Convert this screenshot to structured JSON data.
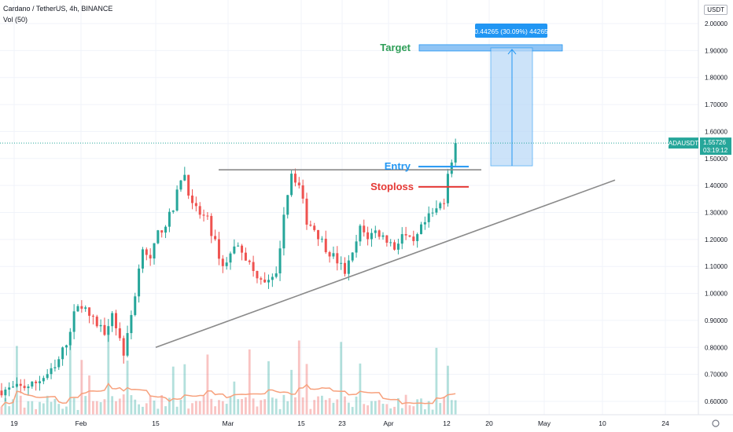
{
  "header": {
    "title": "Cardano / TetherUS, 4h, BINANCE",
    "volume_label": "Vol (50)"
  },
  "currency_button": "USDT",
  "price_tag": {
    "symbol": "ADAUSDT",
    "price": "1.55726",
    "countdown": "03:19:12",
    "color": "#26a69a"
  },
  "colors": {
    "up": "#26a69a",
    "down": "#ef5350",
    "volume_ma": "#f7a17d",
    "trendline": "#8a8a8a",
    "projection": "#2196f3",
    "entry": "#2196f3",
    "stoploss": "#e53935",
    "target": "#2e9e57"
  },
  "chart_data": {
    "type": "candlestick",
    "y_axis": {
      "ticks": [
        0.6,
        0.7,
        0.8,
        0.9,
        1.0,
        1.1,
        1.2,
        1.3,
        1.4,
        1.5,
        1.6,
        1.7,
        1.8,
        1.9,
        2.0
      ],
      "tick_labels": [
        "0.60000",
        "0.70000",
        "0.80000",
        "0.90000",
        "1.00000",
        "1.10000",
        "1.20000",
        "1.30000",
        "1.40000",
        "1.50000",
        "1.60000",
        "1.70000",
        "1.80000",
        "1.90000",
        "2.00000"
      ],
      "range": [
        0.57,
        2.04
      ]
    },
    "x_axis": {
      "tick_labels": [
        "19",
        "Feb",
        "15",
        "Mar",
        "15",
        "23",
        "Apr",
        "12",
        "20",
        "May",
        "10",
        "24"
      ]
    },
    "price_path": [
      [
        0,
        0.64
      ],
      [
        8,
        0.66
      ],
      [
        14,
        0.72
      ],
      [
        17,
        0.82
      ],
      [
        20,
        0.97
      ],
      [
        24,
        0.9
      ],
      [
        27,
        0.86
      ],
      [
        29,
        0.93
      ],
      [
        32,
        0.78
      ],
      [
        33,
        0.84
      ],
      [
        35,
        1.0
      ],
      [
        37,
        1.18
      ],
      [
        39,
        1.12
      ],
      [
        41,
        1.22
      ],
      [
        43,
        1.26
      ],
      [
        45,
        1.31
      ],
      [
        47,
        1.43
      ],
      [
        48,
        1.44
      ],
      [
        50,
        1.32
      ],
      [
        54,
        1.27
      ],
      [
        58,
        1.1
      ],
      [
        62,
        1.19
      ],
      [
        66,
        1.08
      ],
      [
        70,
        1.04
      ],
      [
        72,
        1.06
      ],
      [
        74,
        1.3
      ],
      [
        76,
        1.45
      ],
      [
        78,
        1.4
      ],
      [
        80,
        1.27
      ],
      [
        82,
        1.24
      ],
      [
        85,
        1.17
      ],
      [
        88,
        1.12
      ],
      [
        90,
        1.08
      ],
      [
        92,
        1.14
      ],
      [
        94,
        1.24
      ],
      [
        96,
        1.21
      ],
      [
        98,
        1.23
      ],
      [
        101,
        1.2
      ],
      [
        103,
        1.17
      ],
      [
        105,
        1.22
      ],
      [
        108,
        1.18
      ],
      [
        110,
        1.24
      ],
      [
        112,
        1.28
      ],
      [
        114,
        1.31
      ],
      [
        116,
        1.35
      ],
      [
        117,
        1.45
      ],
      [
        118,
        1.5
      ],
      [
        119,
        1.557
      ]
    ],
    "last_price": 1.55726,
    "triangle_resistance": 1.458,
    "triangle_support": {
      "start_price": 0.8,
      "end_price": 1.42
    },
    "entry_price": 1.47,
    "stoploss_price": 1.395,
    "target_price": 1.91,
    "projection_label": "0.44265 (30.09%) 44265",
    "annotations": [
      "Entry",
      "Stoploss",
      "Target"
    ]
  }
}
